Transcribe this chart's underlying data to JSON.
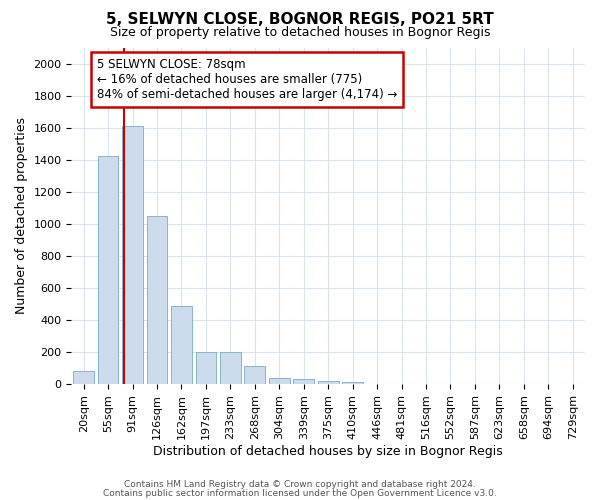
{
  "title1": "5, SELWYN CLOSE, BOGNOR REGIS, PO21 5RT",
  "title2": "Size of property relative to detached houses in Bognor Regis",
  "xlabel": "Distribution of detached houses by size in Bognor Regis",
  "ylabel": "Number of detached properties",
  "categories": [
    "20sqm",
    "55sqm",
    "91sqm",
    "126sqm",
    "162sqm",
    "197sqm",
    "233sqm",
    "268sqm",
    "304sqm",
    "339sqm",
    "375sqm",
    "410sqm",
    "446sqm",
    "481sqm",
    "516sqm",
    "552sqm",
    "587sqm",
    "623sqm",
    "658sqm",
    "694sqm",
    "729sqm"
  ],
  "values": [
    80,
    1420,
    1610,
    1050,
    490,
    200,
    200,
    110,
    40,
    30,
    20,
    15,
    0,
    0,
    0,
    0,
    0,
    0,
    0,
    0,
    0
  ],
  "bar_color": "#ccdcec",
  "bar_edge_color": "#7aaac8",
  "annotation_line1": "5 SELWYN CLOSE: 78sqm",
  "annotation_line2": "← 16% of detached houses are smaller (775)",
  "annotation_line3": "84% of semi-detached houses are larger (4,174) →",
  "annotation_box_color": "#ffffff",
  "annotation_box_edge": "#cc0000",
  "vline_color": "#cc0000",
  "footer1": "Contains HM Land Registry data © Crown copyright and database right 2024.",
  "footer2": "Contains public sector information licensed under the Open Government Licence v3.0.",
  "ylim": [
    0,
    2100
  ],
  "yticks": [
    0,
    200,
    400,
    600,
    800,
    1000,
    1200,
    1400,
    1600,
    1800,
    2000
  ],
  "bg_color": "#ffffff",
  "grid_color": "#d8e4f0",
  "title1_fontsize": 11,
  "title2_fontsize": 9,
  "xlabel_fontsize": 9,
  "ylabel_fontsize": 9,
  "tick_fontsize": 8,
  "footer_fontsize": 6.5
}
